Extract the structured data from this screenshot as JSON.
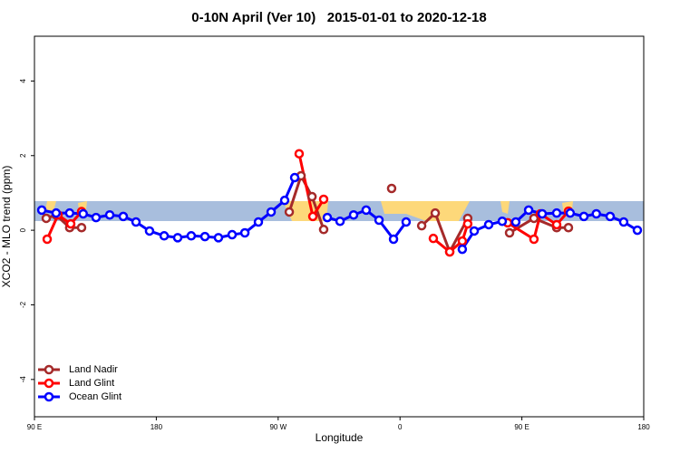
{
  "chart_data": {
    "type": "line",
    "title": "0-10N April (Ver 10)   2015-01-01 to 2020-12-18",
    "xlabel": "Longitude",
    "ylabel": "XCO2 - MLO trend (ppm)",
    "xlim": [
      90,
      540
    ],
    "xticks": [
      {
        "value": 90,
        "label": "90 E"
      },
      180,
      {
        "value": 270,
        "label": "90 W"
      },
      {
        "value": 360,
        "label": "0"
      },
      {
        "value": 450,
        "label": "90 E"
      },
      {
        "value": 540,
        "label": "180"
      }
    ],
    "ylim": [
      -5,
      5.2
    ],
    "yticks": [
      -4,
      -2,
      0,
      2,
      4
    ],
    "legend": "lower left",
    "series": [
      {
        "name": "Land Nadir",
        "color": "#a52a2a",
        "x": [
          98.7,
          106,
          116,
          124.8,
          null,
          278.2,
          286.9,
          295,
          303.6,
          null,
          353.8,
          null,
          376,
          386,
          396.7,
          410,
          null,
          440.9,
          458.9,
          475.7,
          484.4
        ],
        "values": [
          0.32,
          0.41,
          0.07,
          0.07,
          null,
          0.49,
          1.46,
          0.9,
          0.02,
          null,
          1.12,
          null,
          0.12,
          0.46,
          -0.58,
          0.32,
          null,
          -0.07,
          0.32,
          0.07,
          0.07
        ]
      },
      {
        "name": "Land Glint",
        "color": "#ff0000",
        "x": [
          99.4,
          107.4,
          116.8,
          124.8,
          null,
          285.5,
          295.6,
          303.6,
          null,
          384.6,
          396.7,
          406,
          410,
          null,
          439.5,
          458.9,
          463.7,
          475.7,
          484.4
        ],
        "values": [
          -0.24,
          0.41,
          0.17,
          0.5,
          null,
          2.05,
          0.37,
          0.83,
          null,
          -0.22,
          -0.58,
          -0.29,
          0.17,
          null,
          0.2,
          -0.24,
          0.44,
          0.15,
          0.51
        ]
      },
      {
        "name": "Ocean Glint",
        "color": "#0000ff",
        "x": [
          95.4,
          106,
          116,
          126,
          135.5,
          145.6,
          155.6,
          165,
          175,
          185.8,
          195.8,
          205.8,
          215.9,
          225.9,
          236,
          245.4,
          255.4,
          264.8,
          274.8,
          282.2,
          null,
          306.3,
          315.7,
          325.7,
          335,
          344.5,
          355.2,
          364.5,
          null,
          406,
          414.8,
          425.5,
          435.5,
          445.5,
          455,
          465,
          475.7,
          485.7,
          495.8,
          505,
          515.2,
          525.2,
          535.3
        ],
        "values": [
          0.54,
          0.46,
          0.46,
          0.44,
          0.34,
          0.41,
          0.37,
          0.22,
          -0.02,
          -0.15,
          -0.2,
          -0.15,
          -0.17,
          -0.2,
          -0.12,
          -0.07,
          0.22,
          0.49,
          0.8,
          1.41,
          null,
          0.34,
          0.24,
          0.41,
          0.54,
          0.27,
          -0.24,
          0.22,
          null,
          -0.51,
          -0.02,
          0.15,
          0.24,
          0.22,
          0.54,
          0.44,
          0.46,
          0.46,
          0.37,
          0.44,
          0.37,
          0.22,
          0
        ]
      }
    ]
  }
}
